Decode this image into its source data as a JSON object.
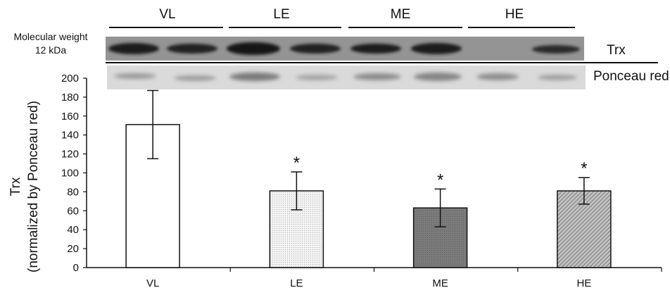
{
  "blot": {
    "groups": [
      "VL",
      "LE",
      "ME",
      "HE"
    ],
    "mw_line1": "Molecular weight",
    "mw_line2": "12 kDa",
    "band_label": "Trx",
    "stain_label": "Ponceau red"
  },
  "chart_data": {
    "type": "bar",
    "categories": [
      "VL",
      "LE",
      "ME",
      "HE"
    ],
    "values": [
      151,
      81,
      63,
      81
    ],
    "errors": [
      36,
      20,
      20,
      14
    ],
    "significance": [
      "",
      "*",
      "*",
      "*"
    ],
    "ylabel_line1": "Trx",
    "ylabel_line2": "(normalized by Ponceau red)",
    "ylim": [
      0,
      200
    ],
    "yticks": [
      0,
      20,
      40,
      60,
      80,
      100,
      120,
      140,
      160,
      180,
      200
    ],
    "grid": false,
    "colors": [
      "#ffffff",
      "#ececec",
      "#7a7a7a",
      "#b8b8b8"
    ]
  }
}
